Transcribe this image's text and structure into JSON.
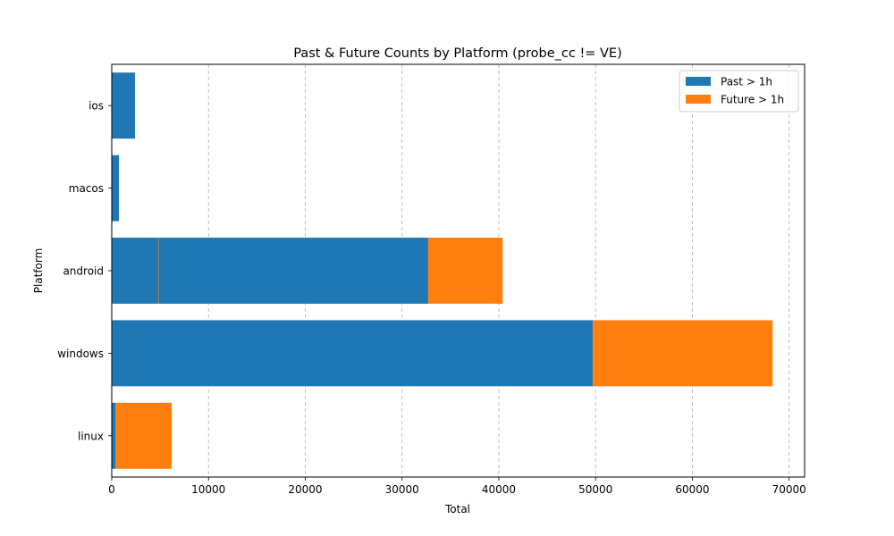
{
  "chart_data": {
    "type": "bar",
    "orientation": "horizontal",
    "stacked": true,
    "title": "Past & Future Counts by Platform (probe_cc != VE)",
    "xlabel": "Total",
    "ylabel": "Platform",
    "categories": [
      "linux",
      "windows",
      "android",
      "macos",
      "ios"
    ],
    "xlim": [
      0,
      71600
    ],
    "xticks": [
      0,
      10000,
      20000,
      30000,
      40000,
      50000,
      60000,
      70000
    ],
    "xtick_labels": [
      "0",
      "10000",
      "20000",
      "30000",
      "40000",
      "50000",
      "60000",
      "70000"
    ],
    "grid": {
      "x": true,
      "y": false,
      "style": "dashed"
    },
    "legend_position": "top-right",
    "series": [
      {
        "name": "Past > 1h",
        "color": "#1f77b4",
        "segments": [
          [
            [
              0,
              400
            ]
          ],
          [
            [
              0,
              49700
            ]
          ],
          [
            [
              0,
              4800
            ],
            [
              4830,
              32700
            ]
          ],
          [
            [
              0,
              750
            ]
          ],
          [
            [
              0,
              2400
            ]
          ]
        ]
      },
      {
        "name": "Future > 1h",
        "color": "#ff7f0e",
        "segments": [
          [
            [
              400,
              6200
            ]
          ],
          [
            [
              49700,
              68300
            ]
          ],
          [
            [
              4800,
              4830
            ],
            [
              32700,
              40400
            ]
          ],
          [],
          []
        ]
      }
    ]
  }
}
